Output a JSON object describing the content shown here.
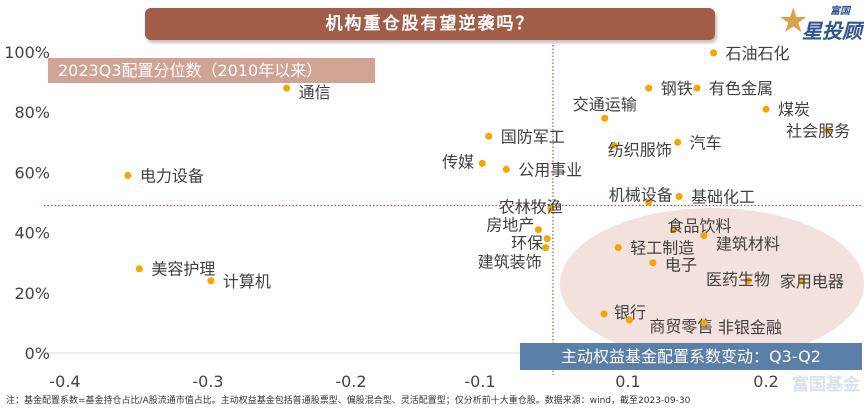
{
  "title": "机构重仓股有望逆袭吗？",
  "logo": {
    "small": "富国",
    "big": "星投顾"
  },
  "watermark": "富国基金",
  "footnote": "注：基金配置系数=基金持仓占比/A股流通市值占比。主动权益基金包括普通股票型、偏股混合型、灵活配置型；仅分析前十大重仓股。数据来源：wind，截至2023-09-30",
  "colors": {
    "point": "#f5a400",
    "title_bg": "#a25d48",
    "xlabel_bg": "#5a7fa9",
    "ylabel_bg": "#cf9f8f",
    "ellipse": "#f0dcd6",
    "refline": "#b5533f"
  },
  "chart_data": {
    "type": "scatter",
    "title": "机构重仓股有望逆袭吗？",
    "xlabel": "主动权益基金配置系数变动：Q3-Q2",
    "ylabel": "2023Q3配置分位数（2010年以来）",
    "x_ticks": [
      "-0.4",
      "-0.3",
      "-0.2",
      "-0.1",
      "0.1",
      "0.2"
    ],
    "y_ticks": [
      "0%",
      "20%",
      "40%",
      "60%",
      "80%",
      "100%"
    ],
    "ylim": [
      0,
      1
    ],
    "reference_lines": {
      "x": 0,
      "y": 0.49
    },
    "points": [
      {
        "name": "石油石化",
        "x": 0.162,
        "y": 0.997
      },
      {
        "name": "钢铁",
        "x": 0.115,
        "y": 0.88
      },
      {
        "name": "有色金属",
        "x": 0.15,
        "y": 0.88
      },
      {
        "name": "煤炭",
        "x": 0.2,
        "y": 0.81
      },
      {
        "name": "社会服务",
        "x": 0.245,
        "y": 0.74
      },
      {
        "name": "交通运输",
        "x": 0.069,
        "y": 0.78
      },
      {
        "name": "汽车",
        "x": 0.136,
        "y": 0.7
      },
      {
        "name": "纺织服饰",
        "x": 0.081,
        "y": 0.69
      },
      {
        "name": "国防军工",
        "x": -0.088,
        "y": 0.72
      },
      {
        "name": "传媒",
        "x": -0.097,
        "y": 0.63
      },
      {
        "name": "公用事业",
        "x": -0.064,
        "y": 0.61
      },
      {
        "name": "机械设备",
        "x": 0.115,
        "y": 0.5
      },
      {
        "name": "基础化工",
        "x": 0.137,
        "y": 0.52
      },
      {
        "name": "电力设备",
        "x": -0.356,
        "y": 0.59
      },
      {
        "name": "通信",
        "x": -0.245,
        "y": 0.88
      },
      {
        "name": "农林牧渔",
        "x": -0.003,
        "y": 0.48
      },
      {
        "name": "房地产",
        "x": -0.02,
        "y": 0.41
      },
      {
        "name": "环保",
        "x": -0.008,
        "y": 0.38
      },
      {
        "name": "建筑装饰",
        "x": -0.01,
        "y": 0.35
      },
      {
        "name": "食品饮料",
        "x": 0.133,
        "y": 0.41
      },
      {
        "name": "建筑材料",
        "x": 0.155,
        "y": 0.39
      },
      {
        "name": "轻工制造",
        "x": 0.087,
        "y": 0.35
      },
      {
        "name": "电子",
        "x": 0.118,
        "y": 0.3
      },
      {
        "name": "医药生物",
        "x": 0.187,
        "y": 0.24
      },
      {
        "name": "家用电器",
        "x": 0.226,
        "y": 0.24
      },
      {
        "name": "银行",
        "x": 0.068,
        "y": 0.13
      },
      {
        "name": "商贸零售",
        "x": 0.101,
        "y": 0.11
      },
      {
        "name": "非银金融",
        "x": 0.155,
        "y": 0.1
      },
      {
        "name": "美容护理",
        "x": -0.348,
        "y": 0.28
      },
      {
        "name": "计算机",
        "x": -0.298,
        "y": 0.24
      }
    ]
  }
}
